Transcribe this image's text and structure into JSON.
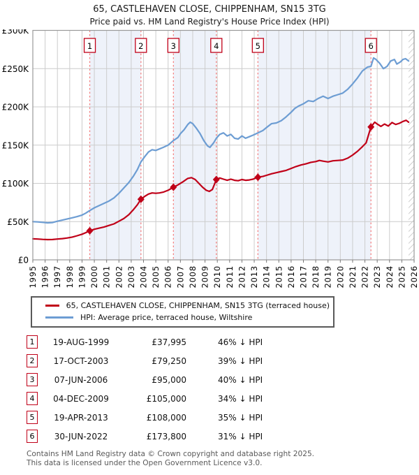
{
  "title": "65, CASTLEHAVEN CLOSE, CHIPPENHAM, SN15 3TG",
  "subtitle": "Price paid vs. HM Land Registry's House Price Index (HPI)",
  "chart_data": {
    "type": "line",
    "x_axis": {
      "range": [
        1995,
        2026
      ],
      "ticks": [
        1995,
        1996,
        1997,
        1998,
        1999,
        2000,
        2001,
        2002,
        2003,
        2004,
        2005,
        2006,
        2007,
        2008,
        2009,
        2010,
        2011,
        2012,
        2013,
        2014,
        2015,
        2016,
        2017,
        2018,
        2019,
        2020,
        2021,
        2022,
        2023,
        2024,
        2025,
        2026
      ]
    },
    "y_axis": {
      "range_k": [
        0,
        300
      ],
      "unit": "GBP thousands",
      "tick_values_k": [
        0,
        50,
        100,
        150,
        200,
        250,
        300
      ],
      "tick_labels": [
        "£0",
        "£50K",
        "£100K",
        "£150K",
        "£200K",
        "£250K",
        "£300K"
      ]
    },
    "hatch_future_from": 2025.55,
    "series": [
      {
        "id": "hpi",
        "legend": "HPI: Average price, terraced house, Wiltshire",
        "color": "#6d9dd3",
        "points_year_valueK": [
          [
            1995,
            50
          ],
          [
            1995.4,
            49.6
          ],
          [
            1995.8,
            49
          ],
          [
            1996.2,
            48.4
          ],
          [
            1996.6,
            48.8
          ],
          [
            1997,
            50.5
          ],
          [
            1997.4,
            52
          ],
          [
            1997.8,
            53.5
          ],
          [
            1998.2,
            55
          ],
          [
            1998.6,
            56.5
          ],
          [
            1999,
            58.5
          ],
          [
            1999.3,
            61
          ],
          [
            1999.63,
            64.5
          ],
          [
            2000,
            68
          ],
          [
            2000.4,
            71
          ],
          [
            2000.8,
            74
          ],
          [
            2001.2,
            77
          ],
          [
            2001.6,
            81
          ],
          [
            2002,
            87
          ],
          [
            2002.4,
            94
          ],
          [
            2002.8,
            101
          ],
          [
            2003.2,
            110
          ],
          [
            2003.5,
            118
          ],
          [
            2003.79,
            128
          ],
          [
            2004.1,
            135
          ],
          [
            2004.4,
            141
          ],
          [
            2004.7,
            144
          ],
          [
            2005,
            143
          ],
          [
            2005.3,
            145
          ],
          [
            2005.6,
            147
          ],
          [
            2006,
            150
          ],
          [
            2006.43,
            156
          ],
          [
            2006.8,
            160
          ],
          [
            2007,
            165
          ],
          [
            2007.3,
            170
          ],
          [
            2007.6,
            177
          ],
          [
            2007.8,
            180
          ],
          [
            2008,
            178
          ],
          [
            2008.3,
            172
          ],
          [
            2008.6,
            165
          ],
          [
            2008.9,
            156
          ],
          [
            2009.2,
            149
          ],
          [
            2009.4,
            147
          ],
          [
            2009.7,
            153
          ],
          [
            2009.92,
            159
          ],
          [
            2010.2,
            164
          ],
          [
            2010.5,
            166
          ],
          [
            2010.8,
            162
          ],
          [
            2011.1,
            164
          ],
          [
            2011.4,
            159
          ],
          [
            2011.7,
            158
          ],
          [
            2012,
            162
          ],
          [
            2012.3,
            159
          ],
          [
            2012.6,
            161
          ],
          [
            2012.9,
            163
          ],
          [
            2013.3,
            166
          ],
          [
            2013.7,
            169
          ],
          [
            2014,
            173
          ],
          [
            2014.4,
            178
          ],
          [
            2014.8,
            179
          ],
          [
            2015.2,
            182
          ],
          [
            2015.6,
            187
          ],
          [
            2016,
            193
          ],
          [
            2016.3,
            198
          ],
          [
            2016.6,
            201
          ],
          [
            2017,
            204
          ],
          [
            2017.4,
            208
          ],
          [
            2017.8,
            207
          ],
          [
            2018.2,
            211
          ],
          [
            2018.6,
            214
          ],
          [
            2019,
            211
          ],
          [
            2019.4,
            214
          ],
          [
            2019.8,
            216
          ],
          [
            2020.2,
            218
          ],
          [
            2020.6,
            223
          ],
          [
            2021,
            230
          ],
          [
            2021.4,
            238
          ],
          [
            2021.8,
            247
          ],
          [
            2022.2,
            252
          ],
          [
            2022.49,
            253
          ],
          [
            2022.7,
            264
          ],
          [
            2022.9,
            262
          ],
          [
            2023.2,
            257
          ],
          [
            2023.5,
            250
          ],
          [
            2023.8,
            253
          ],
          [
            2024.1,
            260
          ],
          [
            2024.4,
            262
          ],
          [
            2024.6,
            256
          ],
          [
            2024.9,
            259
          ],
          [
            2025.1,
            262
          ],
          [
            2025.3,
            263
          ],
          [
            2025.55,
            260
          ]
        ]
      },
      {
        "id": "price-paid",
        "legend": "65, CASTLEHAVEN CLOSE, CHIPPENHAM, SN15 3TG (terraced house)",
        "color": "#c00018",
        "points_year_valueK": [
          [
            1995,
            27.5
          ],
          [
            1995.4,
            27.2
          ],
          [
            1995.8,
            26.8
          ],
          [
            1996.2,
            26.5
          ],
          [
            1996.6,
            26.6
          ],
          [
            1997,
            27.2
          ],
          [
            1997.4,
            27.8
          ],
          [
            1997.8,
            28.6
          ],
          [
            1998.2,
            29.8
          ],
          [
            1998.6,
            31.5
          ],
          [
            1999,
            33.5
          ],
          [
            1999.3,
            35.5
          ],
          [
            1999.63,
            37.995
          ],
          [
            2000,
            40
          ],
          [
            2000.4,
            41.5
          ],
          [
            2000.8,
            43
          ],
          [
            2001.2,
            45
          ],
          [
            2001.6,
            47
          ],
          [
            2002,
            50.5
          ],
          [
            2002.4,
            54
          ],
          [
            2002.8,
            59
          ],
          [
            2003.2,
            66
          ],
          [
            2003.5,
            72
          ],
          [
            2003.79,
            79.25
          ],
          [
            2004.1,
            83
          ],
          [
            2004.4,
            86
          ],
          [
            2004.7,
            87.5
          ],
          [
            2005,
            87
          ],
          [
            2005.3,
            87.5
          ],
          [
            2005.6,
            88.5
          ],
          [
            2006,
            91
          ],
          [
            2006.43,
            95
          ],
          [
            2006.8,
            98
          ],
          [
            2007.2,
            102
          ],
          [
            2007.6,
            106.5
          ],
          [
            2007.9,
            107.5
          ],
          [
            2008.2,
            105
          ],
          [
            2008.5,
            100
          ],
          [
            2008.8,
            95
          ],
          [
            2009.1,
            91
          ],
          [
            2009.35,
            89.5
          ],
          [
            2009.6,
            92
          ],
          [
            2009.92,
            105
          ],
          [
            2010.2,
            107
          ],
          [
            2010.5,
            105.5
          ],
          [
            2010.8,
            104
          ],
          [
            2011.1,
            105.5
          ],
          [
            2011.4,
            104
          ],
          [
            2011.7,
            103.5
          ],
          [
            2012,
            105
          ],
          [
            2012.3,
            104
          ],
          [
            2012.6,
            104.5
          ],
          [
            2012.9,
            105.5
          ],
          [
            2013.3,
            108
          ],
          [
            2013.7,
            109
          ],
          [
            2014,
            110.5
          ],
          [
            2014.4,
            112.5
          ],
          [
            2014.8,
            114
          ],
          [
            2015.2,
            115.5
          ],
          [
            2015.6,
            117
          ],
          [
            2016,
            119.5
          ],
          [
            2016.4,
            122
          ],
          [
            2016.8,
            124
          ],
          [
            2017.2,
            125.5
          ],
          [
            2017.6,
            127.5
          ],
          [
            2018,
            128.5
          ],
          [
            2018.3,
            130
          ],
          [
            2018.6,
            129
          ],
          [
            2019,
            128
          ],
          [
            2019.4,
            129.5
          ],
          [
            2019.8,
            130
          ],
          [
            2020.2,
            130.5
          ],
          [
            2020.6,
            133
          ],
          [
            2021,
            137
          ],
          [
            2021.4,
            142
          ],
          [
            2021.8,
            148
          ],
          [
            2022.1,
            153
          ],
          [
            2022.49,
            173.8
          ],
          [
            2022.8,
            180
          ],
          [
            2023,
            177.5
          ],
          [
            2023.3,
            174.5
          ],
          [
            2023.6,
            177.5
          ],
          [
            2023.9,
            175
          ],
          [
            2024.2,
            179.5
          ],
          [
            2024.5,
            177
          ],
          [
            2024.8,
            178.5
          ],
          [
            2025.1,
            181
          ],
          [
            2025.35,
            182.5
          ],
          [
            2025.55,
            180
          ]
        ]
      }
    ],
    "sales": [
      {
        "n": "1",
        "date": "19-AUG-1999",
        "year": 1999.63,
        "price": 37995,
        "price_label": "£37,995",
        "pct_label": "46% ↓ HPI"
      },
      {
        "n": "2",
        "date": "17-OCT-2003",
        "year": 2003.79,
        "price": 79250,
        "price_label": "£79,250",
        "pct_label": "39% ↓ HPI"
      },
      {
        "n": "3",
        "date": "07-JUN-2006",
        "year": 2006.43,
        "price": 95000,
        "price_label": "£95,000",
        "pct_label": "40% ↓ HPI"
      },
      {
        "n": "4",
        "date": "04-DEC-2009",
        "year": 2009.92,
        "price": 105000,
        "price_label": "£105,000",
        "pct_label": "34% ↓ HPI"
      },
      {
        "n": "5",
        "date": "19-APR-2013",
        "year": 2013.3,
        "price": 108000,
        "price_label": "£108,000",
        "pct_label": "35% ↓ HPI"
      },
      {
        "n": "6",
        "date": "30-JUN-2022",
        "year": 2022.49,
        "price": 173800,
        "price_label": "£173,800",
        "pct_label": "31% ↓ HPI"
      }
    ],
    "shaded_sale_pairs": [
      [
        0,
        1
      ],
      [
        2,
        3
      ],
      [
        4,
        5
      ]
    ],
    "colors": {
      "band": "#eef2fa",
      "grid": "#cccccc",
      "plot_border": "#999999",
      "sale_line": "#f47c7c",
      "hatch": "#bbbbbb",
      "marker_box_border": "#c00018"
    },
    "legend_position": "below"
  },
  "footer": {
    "line1": "Contains HM Land Registry data © Crown copyright and database right 2025.",
    "line2": "This data is licensed under the Open Government Licence v3.0."
  }
}
